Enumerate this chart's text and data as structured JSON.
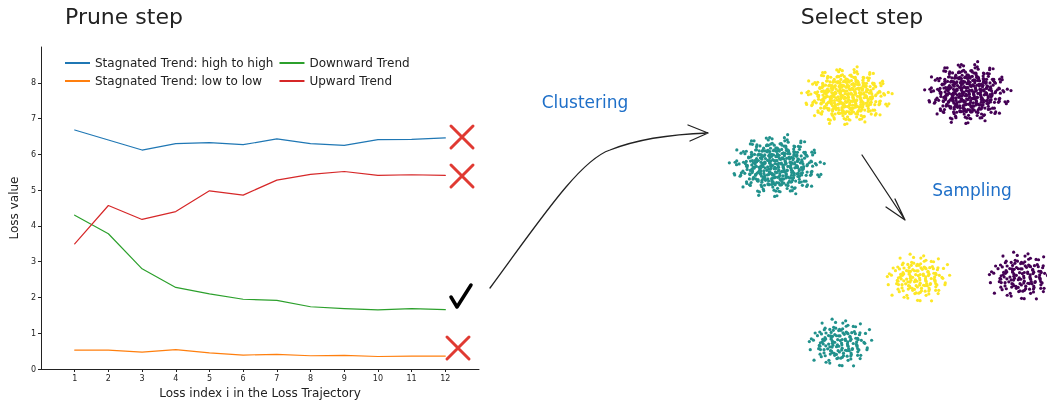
{
  "chart_data": [
    {
      "type": "line",
      "title": "Prune step",
      "xlabel": "Loss index i in the Loss Trajectory",
      "ylabel": "Loss value",
      "x": [
        1,
        2,
        3,
        4,
        5,
        6,
        7,
        8,
        9,
        10,
        11,
        12
      ],
      "xlim": [
        0,
        13
      ],
      "xticks": [
        1,
        2,
        3,
        4,
        5,
        6,
        7,
        8,
        9,
        10,
        11,
        12
      ],
      "ylim": [
        0,
        9
      ],
      "yticks": [
        0,
        1,
        2,
        3,
        4,
        5,
        6,
        7,
        8
      ],
      "grid": false,
      "legend": "top",
      "marker": "none",
      "line_style": "solid",
      "series": [
        {
          "name": "Stagnated Trend: high to high",
          "color": "#1f77b4",
          "values": [
            6.68,
            6.4,
            6.12,
            6.3,
            6.33,
            6.27,
            6.43,
            6.3,
            6.25,
            6.41,
            6.42,
            6.46
          ]
        },
        {
          "name": "Stagnated Trend: low to low",
          "color": "#ff7f0e",
          "values": [
            0.53,
            0.53,
            0.47,
            0.54,
            0.45,
            0.39,
            0.41,
            0.37,
            0.38,
            0.35,
            0.36,
            0.36
          ]
        },
        {
          "name": "Downward Trend",
          "color": "#2ca02c",
          "values": [
            4.3,
            3.78,
            2.8,
            2.28,
            2.1,
            1.95,
            1.92,
            1.74,
            1.69,
            1.65,
            1.69,
            1.66
          ]
        },
        {
          "name": "Upward Trend",
          "color": "#d62728",
          "values": [
            3.5,
            4.57,
            4.18,
            4.4,
            4.98,
            4.86,
            5.28,
            5.44,
            5.52,
            5.41,
            5.43,
            5.41
          ]
        }
      ]
    },
    {
      "type": "other",
      "title": "Select step",
      "annotations": [
        "Clustering",
        "Sampling"
      ]
    }
  ]
}
